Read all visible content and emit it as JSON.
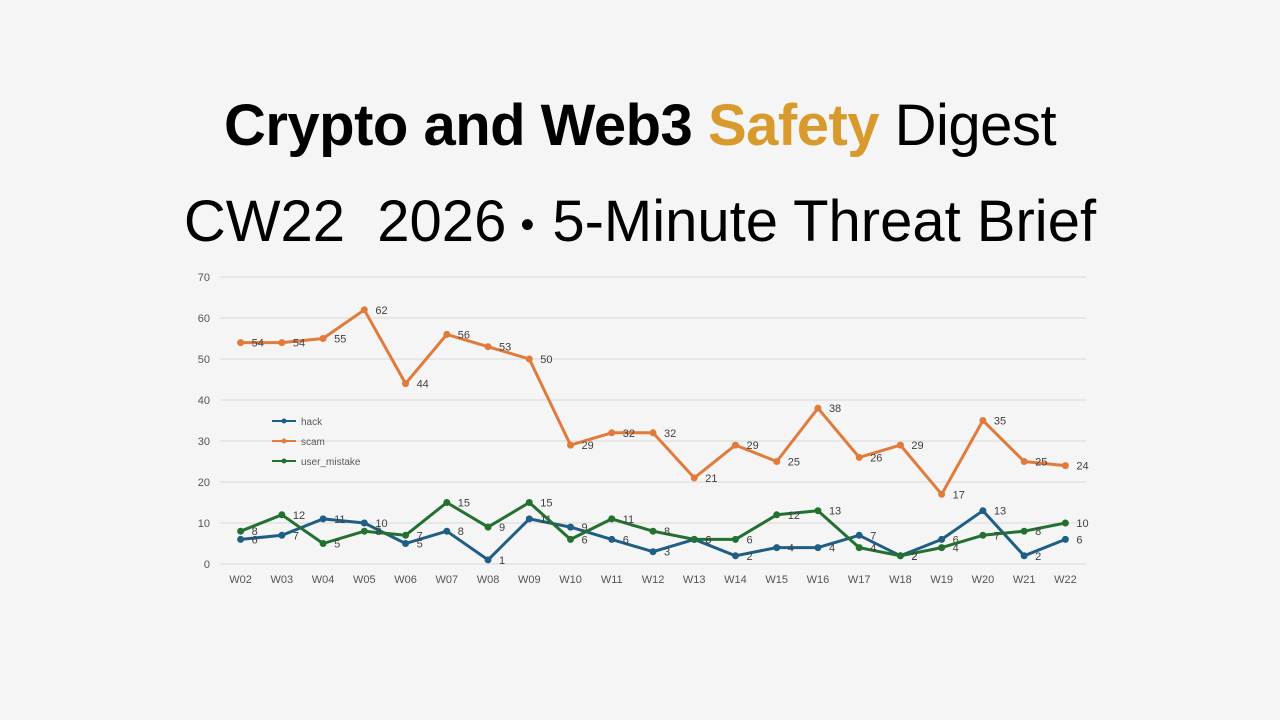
{
  "header": {
    "title_bold": "Crypto and Web3",
    "title_accent": "Safety",
    "title_rest": "Digest",
    "subtitle_week": "CW22",
    "subtitle_year": "2026",
    "subtitle_separator": "•",
    "subtitle_rest": "5-Minute Threat Brief"
  },
  "colors": {
    "accent": "#d89a2c",
    "hack": "#1f5f86",
    "scam": "#e07b3c",
    "user_mistake": "#237030",
    "grid": "#d9d9d9",
    "tick": "#555555"
  },
  "chart_data": {
    "type": "line",
    "categories": [
      "W02",
      "W03",
      "W04",
      "W05",
      "W06",
      "W07",
      "W08",
      "W09",
      "W10",
      "W11",
      "W12",
      "W13",
      "W14",
      "W15",
      "W16",
      "W17",
      "W18",
      "W19",
      "W20",
      "W21",
      "W22"
    ],
    "ylim": [
      0,
      70
    ],
    "yticks": [
      0,
      10,
      20,
      30,
      40,
      50,
      60,
      70
    ],
    "grid": true,
    "legend": "left",
    "series": [
      {
        "name": "hack",
        "color": "#1f5f86",
        "values": [
          6,
          7,
          11,
          10,
          5,
          8,
          1,
          11,
          9,
          6,
          3,
          6,
          2,
          4,
          4,
          7,
          2,
          6,
          13,
          2,
          6
        ]
      },
      {
        "name": "scam",
        "color": "#e07b3c",
        "values": [
          54,
          54,
          55,
          62,
          44,
          56,
          53,
          50,
          29,
          32,
          32,
          21,
          29,
          25,
          38,
          26,
          29,
          17,
          35,
          25,
          24
        ]
      },
      {
        "name": "user_mistake",
        "color": "#237030",
        "values": [
          8,
          12,
          5,
          8,
          7,
          15,
          9,
          15,
          6,
          11,
          8,
          6,
          6,
          12,
          13,
          4,
          2,
          4,
          7,
          8,
          10
        ]
      }
    ]
  }
}
